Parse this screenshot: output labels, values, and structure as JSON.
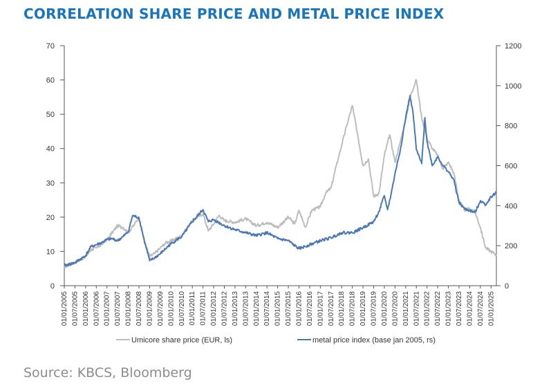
{
  "title": "CORRELATION SHARE PRICE AND METAL PRICE INDEX",
  "source": "Source: KBCS, Bloomberg",
  "chart_data": {
    "type": "line",
    "title": "CORRELATION SHARE PRICE AND METAL PRICE INDEX",
    "x_ticks": [
      "01/01/2005",
      "01/07/2005",
      "01/01/2006",
      "01/07/2006",
      "01/01/2007",
      "01/07/2007",
      "01/01/2008",
      "01/07/2008",
      "01/01/2009",
      "01/07/2009",
      "01/01/2010",
      "01/07/2010",
      "01/01/2011",
      "01/07/2011",
      "01/01/2012",
      "01/07/2012",
      "01/01/2013",
      "01/07/2013",
      "01/01/2014",
      "01/07/2014",
      "01/01/2015",
      "01/07/2015",
      "01/01/2016",
      "01/07/2016",
      "01/01/2017",
      "01/07/2017",
      "01/01/2018",
      "01/07/2018",
      "01/01/2019",
      "01/07/2019",
      "01/01/2020",
      "01/07/2020",
      "01/01/2021",
      "01/07/2021",
      "01/01/2022",
      "01/07/2022",
      "01/01/2023",
      "01/07/2023",
      "01/01/2024",
      "01/07/2024",
      "01/01/2025"
    ],
    "y_left": {
      "ylim": [
        0,
        70
      ],
      "ticks": [
        "0",
        "10",
        "20",
        "30",
        "40",
        "50",
        "60",
        "70"
      ]
    },
    "y_right": {
      "ylim": [
        0,
        1200
      ],
      "ticks": [
        "0",
        "200",
        "400",
        "600",
        "800",
        "1000",
        "1200"
      ]
    },
    "legend_position": "bottom",
    "series": [
      {
        "name": "Umicore share price (EUR, ls)",
        "axis": "left",
        "color": "#bdbdbd",
        "points": [
          [
            2005.0,
            5.5
          ],
          [
            2005.5,
            6.8
          ],
          [
            2006.0,
            8.5
          ],
          [
            2006.25,
            10.5
          ],
          [
            2006.5,
            11.0
          ],
          [
            2006.75,
            12.0
          ],
          [
            2007.0,
            13.5
          ],
          [
            2007.25,
            15.5
          ],
          [
            2007.5,
            17.5
          ],
          [
            2007.75,
            17.0
          ],
          [
            2008.0,
            15.5
          ],
          [
            2008.3,
            18.0
          ],
          [
            2008.5,
            20.0
          ],
          [
            2008.75,
            13.0
          ],
          [
            2009.0,
            8.5
          ],
          [
            2009.25,
            9.5
          ],
          [
            2009.5,
            11.0
          ],
          [
            2009.75,
            12.5
          ],
          [
            2010.0,
            13.0
          ],
          [
            2010.5,
            14.5
          ],
          [
            2011.0,
            19.0
          ],
          [
            2011.5,
            21.0
          ],
          [
            2011.75,
            16.0
          ],
          [
            2012.0,
            18.0
          ],
          [
            2012.25,
            20.5
          ],
          [
            2012.5,
            19.0
          ],
          [
            2013.0,
            18.5
          ],
          [
            2013.5,
            19.5
          ],
          [
            2014.0,
            17.5
          ],
          [
            2014.5,
            18.5
          ],
          [
            2015.0,
            17.0
          ],
          [
            2015.5,
            20.0
          ],
          [
            2015.8,
            18.0
          ],
          [
            2016.0,
            22.0
          ],
          [
            2016.3,
            17.0
          ],
          [
            2016.6,
            22.0
          ],
          [
            2017.0,
            23.0
          ],
          [
            2017.25,
            27.0
          ],
          [
            2017.5,
            28.5
          ],
          [
            2017.75,
            35.0
          ],
          [
            2018.0,
            41.0
          ],
          [
            2018.25,
            47.0
          ],
          [
            2018.5,
            52.5
          ],
          [
            2018.75,
            44.0
          ],
          [
            2019.0,
            35.0
          ],
          [
            2019.25,
            37.0
          ],
          [
            2019.5,
            26.0
          ],
          [
            2019.75,
            27.0
          ],
          [
            2020.0,
            38.0
          ],
          [
            2020.25,
            44.0
          ],
          [
            2020.5,
            36.0
          ],
          [
            2020.75,
            42.0
          ],
          [
            2021.0,
            48.5
          ],
          [
            2021.25,
            56.0
          ],
          [
            2021.5,
            60.0
          ],
          [
            2021.75,
            49.0
          ],
          [
            2022.0,
            43.0
          ],
          [
            2022.25,
            40.0
          ],
          [
            2022.5,
            38.0
          ],
          [
            2022.75,
            34.0
          ],
          [
            2023.0,
            36.0
          ],
          [
            2023.25,
            33.0
          ],
          [
            2023.5,
            25.0
          ],
          [
            2023.75,
            22.0
          ],
          [
            2024.0,
            22.5
          ],
          [
            2024.25,
            21.5
          ],
          [
            2024.5,
            17.0
          ],
          [
            2024.75,
            11.0
          ],
          [
            2025.0,
            10.0
          ],
          [
            2025.25,
            9.0
          ]
        ]
      },
      {
        "name": "metal price index (base jan 2005, rs)",
        "axis": "right",
        "color": "#4a78b4",
        "points": [
          [
            2005.0,
            100
          ],
          [
            2005.5,
            115
          ],
          [
            2006.0,
            150
          ],
          [
            2006.25,
            195
          ],
          [
            2006.5,
            205
          ],
          [
            2006.75,
            215
          ],
          [
            2007.0,
            230
          ],
          [
            2007.25,
            235
          ],
          [
            2007.5,
            225
          ],
          [
            2007.75,
            245
          ],
          [
            2008.0,
            270
          ],
          [
            2008.2,
            350
          ],
          [
            2008.5,
            340
          ],
          [
            2008.75,
            225
          ],
          [
            2009.0,
            125
          ],
          [
            2009.25,
            140
          ],
          [
            2009.5,
            160
          ],
          [
            2009.75,
            185
          ],
          [
            2010.0,
            210
          ],
          [
            2010.5,
            245
          ],
          [
            2011.0,
            320
          ],
          [
            2011.5,
            380
          ],
          [
            2011.75,
            320
          ],
          [
            2012.0,
            330
          ],
          [
            2012.5,
            300
          ],
          [
            2013.0,
            280
          ],
          [
            2013.5,
            265
          ],
          [
            2014.0,
            250
          ],
          [
            2014.5,
            265
          ],
          [
            2015.0,
            235
          ],
          [
            2015.5,
            225
          ],
          [
            2015.8,
            200
          ],
          [
            2016.0,
            185
          ],
          [
            2016.5,
            205
          ],
          [
            2017.0,
            225
          ],
          [
            2017.5,
            240
          ],
          [
            2018.0,
            265
          ],
          [
            2018.5,
            265
          ],
          [
            2019.0,
            290
          ],
          [
            2019.5,
            320
          ],
          [
            2019.75,
            370
          ],
          [
            2020.0,
            450
          ],
          [
            2020.15,
            380
          ],
          [
            2020.3,
            450
          ],
          [
            2020.5,
            560
          ],
          [
            2020.75,
            680
          ],
          [
            2021.0,
            840
          ],
          [
            2021.2,
            950
          ],
          [
            2021.35,
            860
          ],
          [
            2021.5,
            680
          ],
          [
            2021.75,
            610
          ],
          [
            2021.9,
            840
          ],
          [
            2022.0,
            720
          ],
          [
            2022.25,
            600
          ],
          [
            2022.5,
            645
          ],
          [
            2022.75,
            600
          ],
          [
            2023.0,
            570
          ],
          [
            2023.25,
            530
          ],
          [
            2023.5,
            415
          ],
          [
            2023.75,
            385
          ],
          [
            2024.0,
            375
          ],
          [
            2024.25,
            365
          ],
          [
            2024.5,
            425
          ],
          [
            2024.75,
            405
          ],
          [
            2025.0,
            445
          ],
          [
            2025.25,
            465
          ]
        ]
      }
    ]
  }
}
